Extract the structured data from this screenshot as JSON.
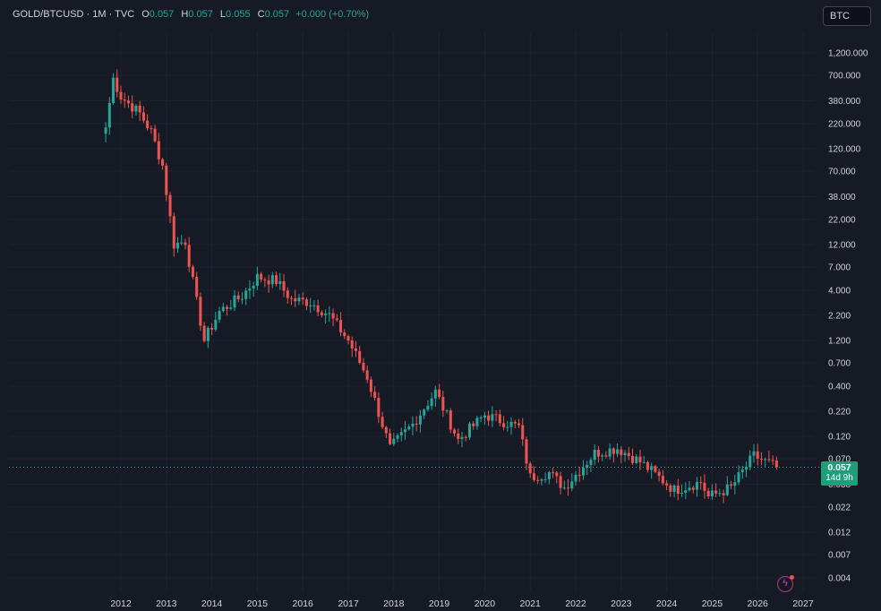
{
  "header": {
    "symbol": "GOLD/BTCUSD",
    "interval": "1M",
    "source": "TVC",
    "open_label": "O",
    "open": "0.057",
    "high_label": "H",
    "high": "0.057",
    "low_label": "L",
    "low": "0.055",
    "close_label": "C",
    "close": "0.057",
    "change": "+0.000 (+0.70%)"
  },
  "currency_button": "BTC",
  "last_price": {
    "value": "0.057",
    "countdown": "14d 9h"
  },
  "colors": {
    "up": "#26a69a",
    "down": "#ef5350",
    "background": "#161a25",
    "axis_text": "#d1d4dc"
  },
  "icons": {
    "bottom_right": "lightning-bolt-icon"
  },
  "chart_data": {
    "type": "candlestick",
    "y_scale": "log",
    "y_ticks": [
      "1,200.000",
      "700.000",
      "380.000",
      "220.000",
      "120.000",
      "70.000",
      "38.000",
      "22.000",
      "12.000",
      "7.000",
      "4.000",
      "2.200",
      "1.200",
      "0.700",
      "0.400",
      "0.220",
      "0.120",
      "0.070",
      "0.038",
      "0.022",
      "0.012",
      "0.007",
      "0.004"
    ],
    "x_ticks": [
      "2012",
      "2013",
      "2014",
      "2015",
      "2016",
      "2017",
      "2018",
      "2019",
      "2020",
      "2021",
      "2022",
      "2023",
      "2024",
      "2025",
      "2026",
      "2027"
    ],
    "grid": true,
    "last_price_line": 0.057,
    "anchors": [
      [
        "2011-09",
        200
      ],
      [
        "2011-11",
        650
      ],
      [
        "2012-01",
        420
      ],
      [
        "2012-06",
        280
      ],
      [
        "2012-09",
        180
      ],
      [
        "2012-12",
        80
      ],
      [
        "2013-03",
        12
      ],
      [
        "2013-06",
        13
      ],
      [
        "2013-09",
        3
      ],
      [
        "2013-11",
        1.2
      ],
      [
        "2014-03",
        2.4
      ],
      [
        "2014-09",
        3.5
      ],
      [
        "2015-01",
        5.5
      ],
      [
        "2015-06",
        5.0
      ],
      [
        "2015-10",
        3.2
      ],
      [
        "2016-03",
        3.0
      ],
      [
        "2016-08",
        2.2
      ],
      [
        "2017-01",
        1.2
      ],
      [
        "2017-06",
        0.5
      ],
      [
        "2017-12",
        0.09
      ],
      [
        "2018-06",
        0.16
      ],
      [
        "2018-12",
        0.35
      ],
      [
        "2019-06",
        0.11
      ],
      [
        "2020-01",
        0.2
      ],
      [
        "2020-10",
        0.15
      ],
      [
        "2021-01",
        0.045
      ],
      [
        "2021-06",
        0.05
      ],
      [
        "2021-10",
        0.035
      ],
      [
        "2022-06",
        0.08
      ],
      [
        "2022-12",
        0.09
      ],
      [
        "2023-06",
        0.065
      ],
      [
        "2024-03",
        0.033
      ],
      [
        "2024-10",
        0.04
      ],
      [
        "2024-12",
        0.028
      ],
      [
        "2025-06",
        0.035
      ],
      [
        "2025-12",
        0.075
      ],
      [
        "2026-06",
        0.057
      ]
    ]
  }
}
